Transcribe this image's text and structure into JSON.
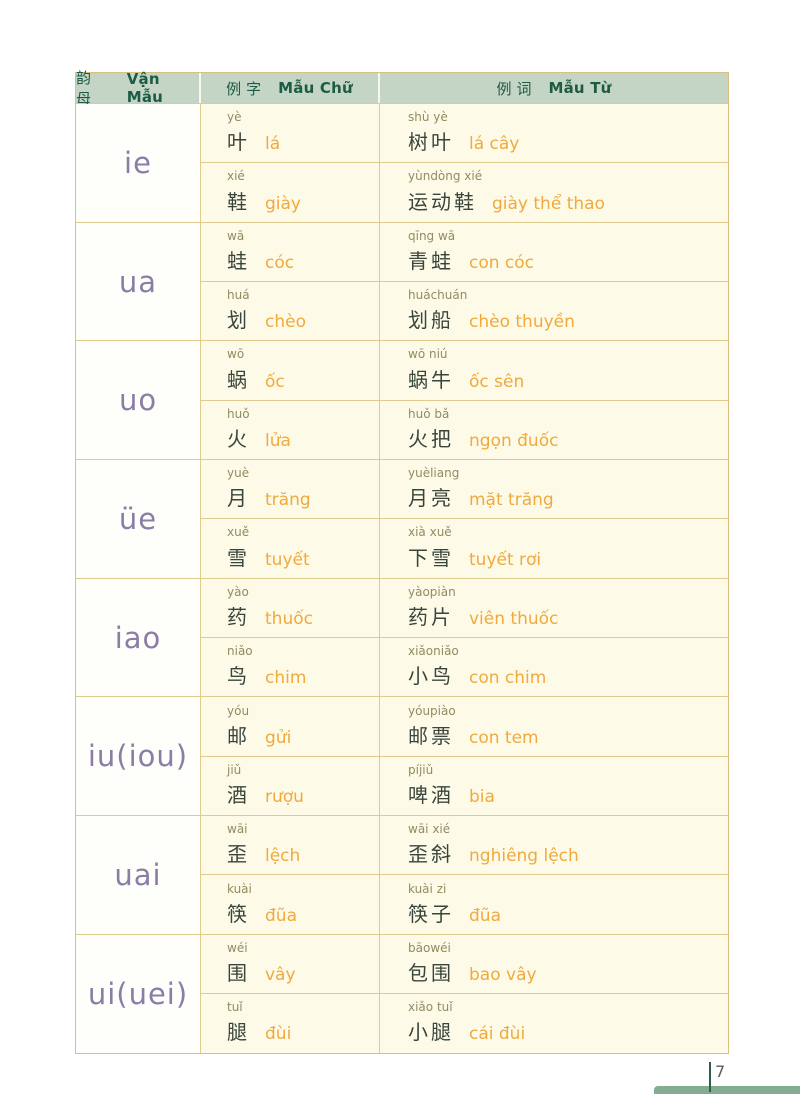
{
  "header": {
    "cols": [
      {
        "zh": "韵母",
        "vi": "Vận Mẫu"
      },
      {
        "zh": "例字",
        "vi": "Mẫu Chữ"
      },
      {
        "zh": "例词",
        "vi": "Mẫu Từ"
      }
    ]
  },
  "rows": [
    {
      "final": "ie",
      "char1": {
        "pinyin": "yè",
        "hanzi": "叶",
        "viet": "lá"
      },
      "word1": {
        "pinyin": "shù yè",
        "hanzi": "树叶",
        "viet": "lá cây"
      },
      "char2": {
        "pinyin": "xié",
        "hanzi": "鞋",
        "viet": "giày"
      },
      "word2": {
        "pinyin": "yùndòng xié",
        "hanzi": "运动鞋",
        "viet": "giày thể thao"
      }
    },
    {
      "final": "ua",
      "char1": {
        "pinyin": "wā",
        "hanzi": "蛙",
        "viet": "cóc"
      },
      "word1": {
        "pinyin": "qīng wā",
        "hanzi": "青蛙",
        "viet": "con cóc"
      },
      "char2": {
        "pinyin": "huá",
        "hanzi": "划",
        "viet": "chèo"
      },
      "word2": {
        "pinyin": "huáchuán",
        "hanzi": "划船",
        "viet": "chèo thuyền"
      }
    },
    {
      "final": "uo",
      "char1": {
        "pinyin": "wō",
        "hanzi": "蜗",
        "viet": "ốc"
      },
      "word1": {
        "pinyin": "wō niú",
        "hanzi": "蜗牛",
        "viet": "ốc sên"
      },
      "char2": {
        "pinyin": "huǒ",
        "hanzi": "火",
        "viet": "lửa"
      },
      "word2": {
        "pinyin": "huǒ bǎ",
        "hanzi": "火把",
        "viet": "ngọn đuốc"
      }
    },
    {
      "final": "üe",
      "char1": {
        "pinyin": "yuè",
        "hanzi": "月",
        "viet": "trăng"
      },
      "word1": {
        "pinyin": "yuèliang",
        "hanzi": "月亮",
        "viet": "mặt trăng"
      },
      "char2": {
        "pinyin": "xuě",
        "hanzi": "雪",
        "viet": "tuyết"
      },
      "word2": {
        "pinyin": "xià xuě",
        "hanzi": "下雪",
        "viet": "tuyết rơi"
      }
    },
    {
      "final": "iao",
      "char1": {
        "pinyin": "yào",
        "hanzi": "药",
        "viet": "thuốc"
      },
      "word1": {
        "pinyin": "yàopiàn",
        "hanzi": "药片",
        "viet": "viên thuốc"
      },
      "char2": {
        "pinyin": "niǎo",
        "hanzi": "鸟",
        "viet": "chim"
      },
      "word2": {
        "pinyin": "xiǎoniǎo",
        "hanzi": "小鸟",
        "viet": "con chim"
      }
    },
    {
      "final": "iu(iou)",
      "char1": {
        "pinyin": "yóu",
        "hanzi": "邮",
        "viet": "gửi"
      },
      "word1": {
        "pinyin": "yóupiào",
        "hanzi": "邮票",
        "viet": "con tem"
      },
      "char2": {
        "pinyin": "jiǔ",
        "hanzi": "酒",
        "viet": "rượu"
      },
      "word2": {
        "pinyin": "píjiǔ",
        "hanzi": "啤酒",
        "viet": "bia"
      }
    },
    {
      "final": "uai",
      "char1": {
        "pinyin": "wāi",
        "hanzi": "歪",
        "viet": "lệch"
      },
      "word1": {
        "pinyin": "wāi xié",
        "hanzi": "歪斜",
        "viet": "nghiêng lệch"
      },
      "char2": {
        "pinyin": "kuài",
        "hanzi": "筷",
        "viet": "đũa"
      },
      "word2": {
        "pinyin": "kuài zi",
        "hanzi": "筷子",
        "viet": "đũa"
      }
    },
    {
      "final": "ui(uei)",
      "char1": {
        "pinyin": "wéi",
        "hanzi": "围",
        "viet": "vây"
      },
      "word1": {
        "pinyin": "bāowéi",
        "hanzi": "包围",
        "viet": "bao vây"
      },
      "char2": {
        "pinyin": "tuǐ",
        "hanzi": "腿",
        "viet": "đùi"
      },
      "word2": {
        "pinyin": "xiǎo tuǐ",
        "hanzi": "小腿",
        "viet": "cái đùi"
      }
    }
  ],
  "page": {
    "number": "7"
  },
  "colors": {
    "header_bg": "#c4d4c5",
    "header_text": "#1d5c44",
    "border": "#d8c080",
    "inner_border": "#e0cb8e",
    "cell_bg": "#fdfbe7",
    "final_text": "#8b7da6",
    "pinyin_text": "#8f8c62",
    "hanzi_text": "#39453c",
    "viet_text": "#f0a93e",
    "page_bar": "#83ac90"
  }
}
